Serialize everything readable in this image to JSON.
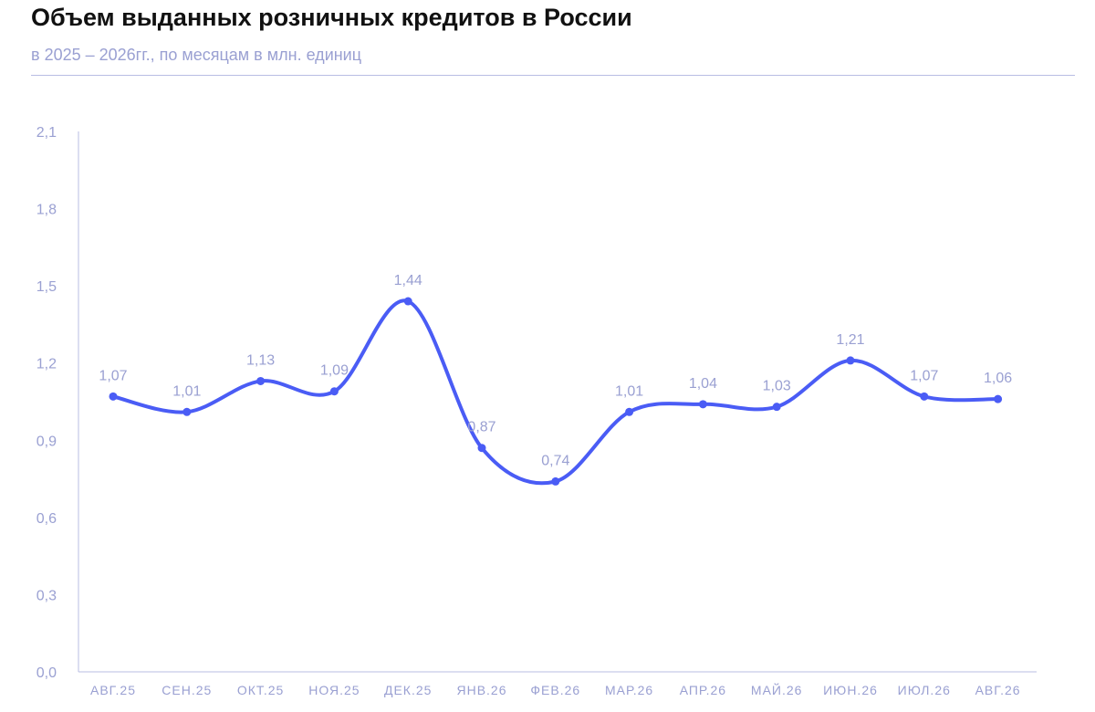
{
  "title": "Объем выданных розничных кредитов в России",
  "subtitle": "в 2025 – 2026гг., по месяцам в млн. единиц",
  "colors": {
    "line": "#4a5cf5",
    "axis": "#b9bde3",
    "label": "#9aa0d2",
    "title": "#111111"
  },
  "chart_data": {
    "type": "line",
    "categories": [
      "АВГ.25",
      "СЕН.25",
      "ОКТ.25",
      "НОЯ.25",
      "ДЕК.25",
      "ЯНВ.26",
      "ФЕВ.26",
      "МАР.26",
      "АПР.26",
      "МАЙ.26",
      "ИЮН.26",
      "ИЮЛ.26",
      "АВГ.26"
    ],
    "values": [
      1.07,
      1.01,
      1.13,
      1.09,
      1.44,
      0.87,
      0.74,
      1.01,
      1.04,
      1.03,
      1.21,
      1.07,
      1.06
    ],
    "data_labels": [
      "1,07",
      "1,01",
      "1,13",
      "1,09",
      "1,44",
      "0,87",
      "0,74",
      "1,01",
      "1,04",
      "1,03",
      "1,21",
      "1,07",
      "1,06"
    ],
    "y_ticks": [
      0,
      0.3,
      0.6,
      0.9,
      1.2,
      1.5,
      1.8,
      2.1
    ],
    "y_tick_labels": [
      "0,0",
      "0,3",
      "0,6",
      "0,9",
      "1,2",
      "1,5",
      "1,8",
      "2,1"
    ],
    "ylim": [
      0,
      2.1
    ],
    "smooth": true,
    "grid": false,
    "legend": "none"
  }
}
